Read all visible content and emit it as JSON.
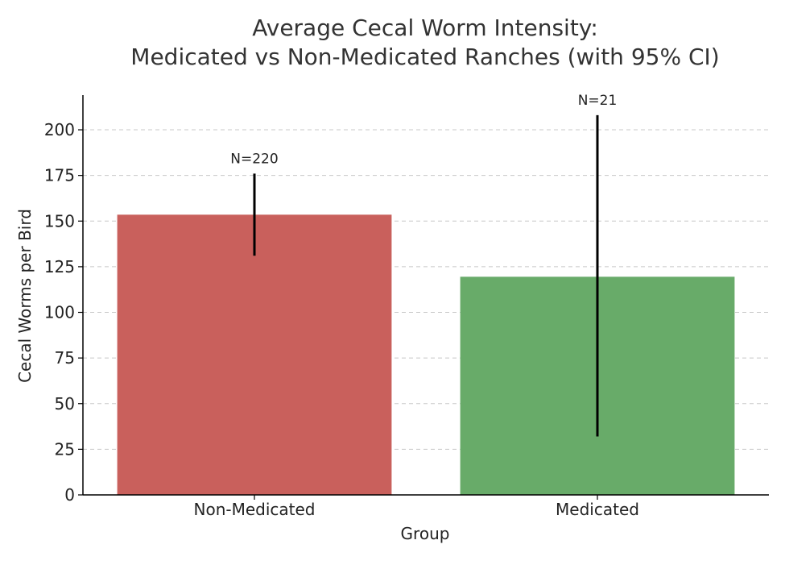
{
  "chart_data": {
    "type": "bar",
    "title_lines": [
      "Average Cecal Worm Intensity:",
      "Medicated vs Non-Medicated Ranches (with 95% CI)"
    ],
    "xlabel": "Group",
    "ylabel": "Cecal Worms per Bird",
    "categories": [
      "Non-Medicated",
      "Medicated"
    ],
    "values": [
      153.5,
      119.5
    ],
    "ci_low": [
      131,
      32
    ],
    "ci_high": [
      176,
      208
    ],
    "annotations": [
      "N=220",
      "N=21"
    ],
    "colors": [
      "#c9605c",
      "#68ab69"
    ],
    "ylim": [
      0,
      219
    ],
    "yticks": [
      0,
      25,
      50,
      75,
      100,
      125,
      150,
      175,
      200
    ],
    "grid": true
  }
}
